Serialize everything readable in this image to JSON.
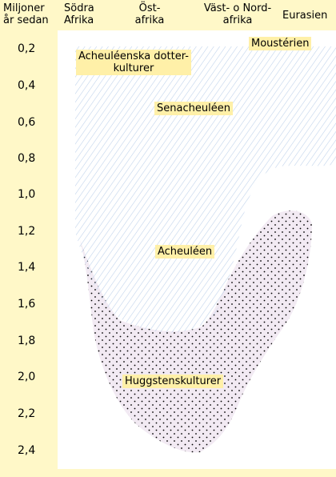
{
  "header": {
    "time_axis": "Miljoner\når sedan",
    "regions": {
      "southern_africa": "Södra\nAfrika",
      "east_africa": "Öst-\nafrika",
      "west_north_africa": "Väst- o Nord-\nafrika",
      "eurasia": "Eurasien"
    }
  },
  "time_ticks": [
    "0,2",
    "0,4",
    "0,6",
    "0,8",
    "1,0",
    "1,2",
    "1,4",
    "1,6",
    "1,8",
    "2,0",
    "2,2",
    "2,4"
  ],
  "cultures": {
    "mousterian": "Moustérien",
    "acheulean_daughters": "Acheuléenska dotter-\nkulturer",
    "senacheulean": "Senacheuléen",
    "acheulean": "Acheuléen",
    "pebble_tools": "Huggstenskulturer"
  },
  "colors": {
    "background": "#fff8c8",
    "plot_area": "#ffffff",
    "hatch": "#bcd0ea",
    "dots_fill": "#f2eaf3",
    "dots": "#000000",
    "label_bg": "#fff0a8"
  }
}
